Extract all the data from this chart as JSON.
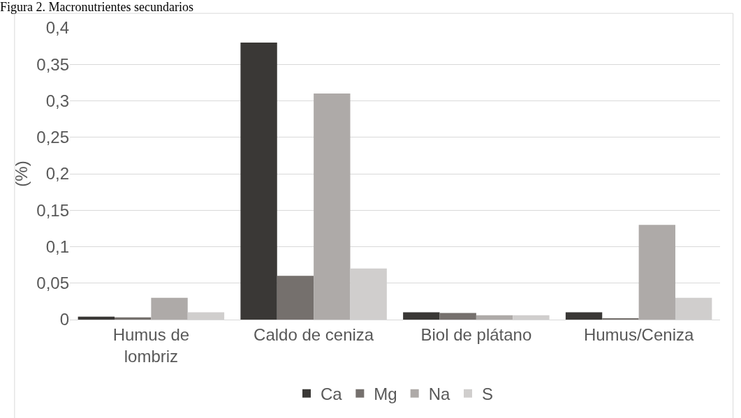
{
  "chart_data": {
    "type": "bar",
    "title": "Figura 2. Macronutrientes secundarios",
    "ylabel": "(%)",
    "categories": [
      "Humus de lombriz",
      "Caldo de ceniza",
      "Biol de plátano",
      "Humus/Ceniza"
    ],
    "series": [
      {
        "name": "Ca",
        "color": "#3a3836",
        "values": [
          0.004,
          0.38,
          0.01,
          0.01
        ]
      },
      {
        "name": "Mg",
        "color": "#75706d",
        "values": [
          0.003,
          0.06,
          0.009,
          0.002
        ]
      },
      {
        "name": "Na",
        "color": "#aeaaa8",
        "values": [
          0.03,
          0.31,
          0.006,
          0.13
        ]
      },
      {
        "name": "S",
        "color": "#d0cecd",
        "values": [
          0.01,
          0.07,
          0.006,
          0.03
        ]
      }
    ],
    "ylim": [
      0,
      0.4
    ],
    "yticks": [
      {
        "value": 0,
        "label": "0"
      },
      {
        "value": 0.05,
        "label": "0,05"
      },
      {
        "value": 0.1,
        "label": "0,1"
      },
      {
        "value": 0.15,
        "label": "0,15"
      },
      {
        "value": 0.2,
        "label": "0,2"
      },
      {
        "value": 0.25,
        "label": "0,25"
      },
      {
        "value": 0.3,
        "label": "0,3"
      },
      {
        "value": 0.35,
        "label": "0,35"
      },
      {
        "value": 0.4,
        "label": "0,4"
      }
    ],
    "grid": "y",
    "legend": "bottom"
  }
}
